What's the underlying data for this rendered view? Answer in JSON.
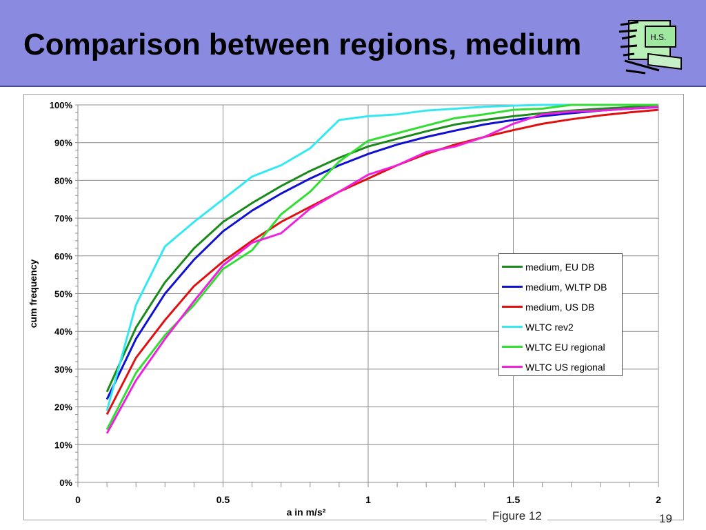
{
  "slide": {
    "title": "Comparison between regions, medium",
    "logo_text": "H.S.",
    "figure_caption": "Figure 12",
    "page_number": "19"
  },
  "chart_data": {
    "type": "line",
    "xlabel": "a in m/s²",
    "ylabel": "cum frequency",
    "xlim": [
      0,
      2
    ],
    "ylim": [
      0,
      1
    ],
    "x_ticks": [
      0,
      0.5,
      1,
      1.5,
      2
    ],
    "x_tick_labels": [
      "0",
      "0.5",
      "1",
      "1.5",
      "2"
    ],
    "y_ticks": [
      0,
      0.1,
      0.2,
      0.3,
      0.4,
      0.5,
      0.6,
      0.7,
      0.8,
      0.9,
      1.0
    ],
    "y_tick_labels": [
      "0%",
      "10%",
      "20%",
      "30%",
      "40%",
      "50%",
      "60%",
      "70%",
      "80%",
      "90%",
      "100%"
    ],
    "grid": "vertical major lines and horizontal lines",
    "legend_position": "upper-right inside plot",
    "x": [
      0.1,
      0.2,
      0.3,
      0.4,
      0.5,
      0.6,
      0.7,
      0.8,
      0.9,
      1.0,
      1.1,
      1.2,
      1.3,
      1.4,
      1.5,
      1.6,
      1.7,
      1.8,
      1.9,
      2.0
    ],
    "series": [
      {
        "name": "medium, EU DB",
        "color": "#1a8a1a",
        "values": [
          0.24,
          0.41,
          0.53,
          0.62,
          0.69,
          0.74,
          0.785,
          0.825,
          0.86,
          0.89,
          0.91,
          0.93,
          0.948,
          0.96,
          0.97,
          0.978,
          0.985,
          0.99,
          0.994,
          0.997
        ]
      },
      {
        "name": "medium, WLTP DB",
        "color": "#1010d0",
        "values": [
          0.22,
          0.38,
          0.5,
          0.59,
          0.665,
          0.72,
          0.765,
          0.805,
          0.84,
          0.87,
          0.895,
          0.915,
          0.932,
          0.948,
          0.96,
          0.97,
          0.978,
          0.985,
          0.99,
          0.994
        ]
      },
      {
        "name": "medium, US DB",
        "color": "#e01010",
        "values": [
          0.18,
          0.33,
          0.43,
          0.52,
          0.585,
          0.64,
          0.69,
          0.73,
          0.77,
          0.805,
          0.84,
          0.87,
          0.895,
          0.915,
          0.933,
          0.95,
          0.962,
          0.972,
          0.98,
          0.987
        ]
      },
      {
        "name": "WLTC rev2",
        "color": "#33e8f0",
        "values": [
          0.19,
          0.47,
          0.625,
          0.69,
          0.75,
          0.81,
          0.84,
          0.885,
          0.96,
          0.97,
          0.975,
          0.985,
          0.99,
          0.995,
          0.998,
          1.0,
          1.0,
          1.0,
          1.0,
          1.0
        ]
      },
      {
        "name": "WLTC EU regional",
        "color": "#33dd33",
        "values": [
          0.14,
          0.29,
          0.39,
          0.47,
          0.565,
          0.615,
          0.71,
          0.77,
          0.85,
          0.905,
          0.925,
          0.945,
          0.965,
          0.975,
          0.987,
          0.99,
          1.0,
          1.0,
          1.0,
          1.0
        ]
      },
      {
        "name": "WLTC US regional",
        "color": "#ee22dd",
        "values": [
          0.13,
          0.27,
          0.38,
          0.48,
          0.575,
          0.635,
          0.66,
          0.725,
          0.77,
          0.815,
          0.84,
          0.875,
          0.89,
          0.915,
          0.95,
          0.975,
          0.982,
          0.985,
          0.99,
          0.995
        ]
      }
    ]
  }
}
